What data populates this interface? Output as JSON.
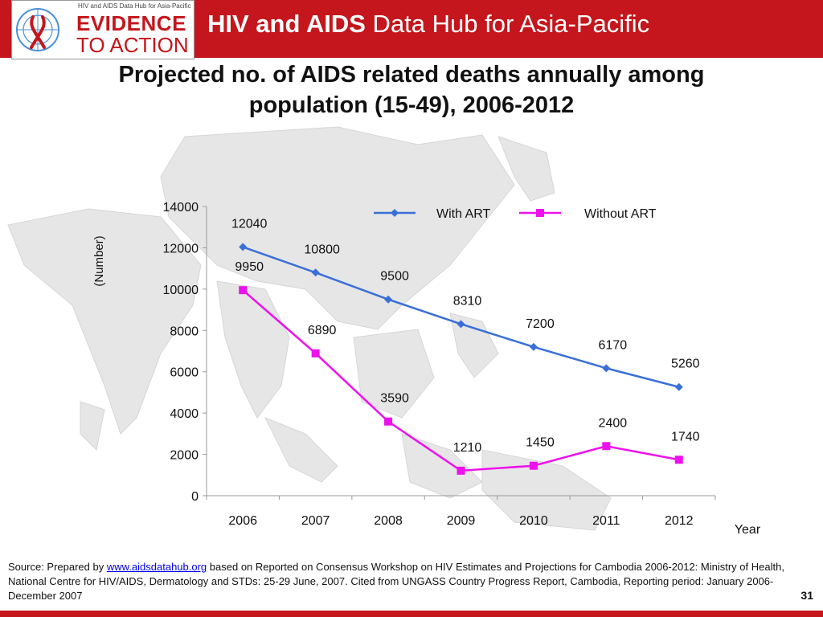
{
  "header": {
    "logo_tagline": "HIV and AIDS Data Hub for Asia-Pacific",
    "logo_line1": "EVIDENCE",
    "logo_line2": "TO ACTION",
    "title_bold": "HIV and AIDS",
    "title_rest": " Data Hub for Asia-Pacific"
  },
  "chart_data": {
    "type": "line",
    "title_line1": "Projected no. of AIDS related deaths annually among",
    "title_line2": "population (15-49), 2006-2012",
    "xlabel": "Year",
    "ylabel": "(Number)",
    "ylim": [
      0,
      14000
    ],
    "yticks": [
      0,
      2000,
      4000,
      6000,
      8000,
      10000,
      12000,
      14000
    ],
    "categories": [
      "2006",
      "2007",
      "2008",
      "2009",
      "2010",
      "2011",
      "2012"
    ],
    "legend_position": "top-right",
    "grid": false,
    "series": [
      {
        "name": "With ART",
        "color": "#3a6fd8",
        "marker": "diamond",
        "values": [
          12040,
          10800,
          9500,
          8310,
          7200,
          6170,
          5260
        ]
      },
      {
        "name": "Without ART",
        "color": "#ee10ee",
        "marker": "square",
        "values": [
          9950,
          6890,
          3590,
          1210,
          1450,
          2400,
          1740
        ]
      }
    ]
  },
  "footer": {
    "source_prefix": "Source: Prepared by ",
    "source_link": "www.aidsdatahub.org",
    "source_rest": "  based on Reported on Consensus Workshop on HIV Estimates and Projections for Cambodia 2006-2012: Ministry of Health, National Centre for HIV/AIDS, Dermatology and STDs: 25-29 June, 2007. Cited from UNGASS Country Progress Report, Cambodia, Reporting period: January 2006-December 2007",
    "page_number": "31"
  }
}
